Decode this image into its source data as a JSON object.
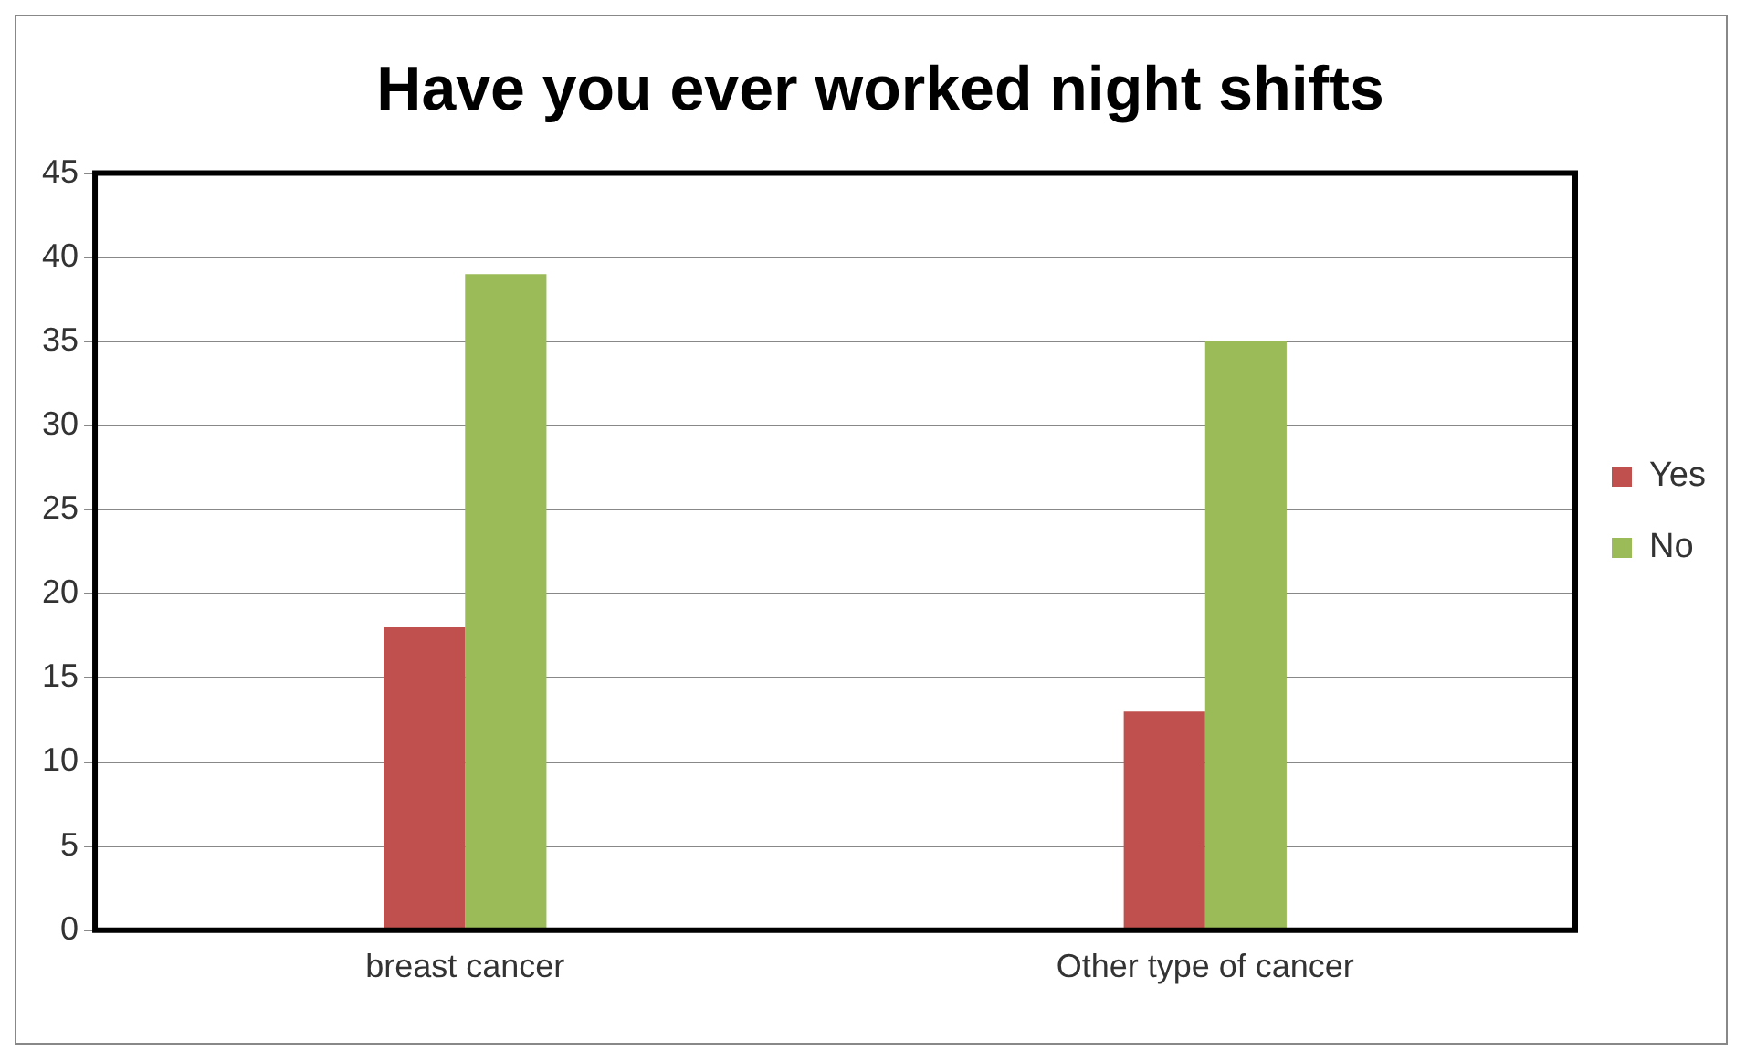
{
  "chart_data": {
    "type": "bar",
    "title": "Have you ever worked night shifts",
    "categories": [
      "breast cancer",
      "Other type of cancer"
    ],
    "series": [
      {
        "name": "Yes",
        "color": "#c0504d",
        "values": [
          18,
          13
        ]
      },
      {
        "name": "No",
        "color": "#9bbb59",
        "values": [
          39,
          35
        ]
      }
    ],
    "ylim": [
      0,
      45
    ],
    "yticks": [
      0,
      5,
      10,
      15,
      20,
      25,
      30,
      35,
      40,
      45
    ],
    "grid": "y",
    "legend": "right"
  }
}
